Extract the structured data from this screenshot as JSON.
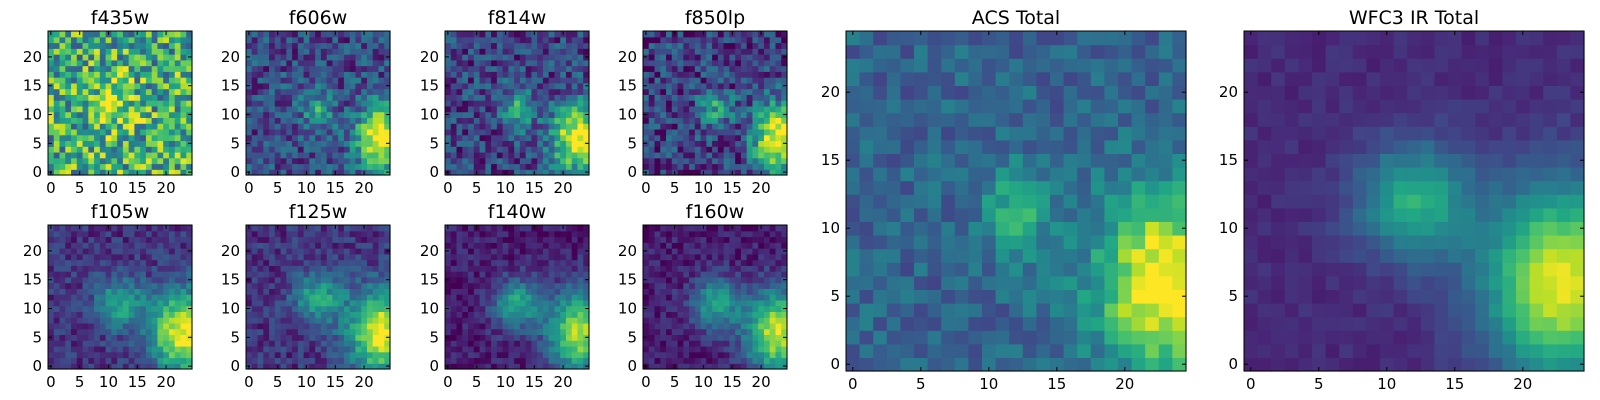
{
  "chart_data": [
    {
      "type": "heatmap",
      "title": "f435w",
      "xticks": [
        "0",
        "5",
        "10",
        "15",
        "20"
      ],
      "yticks": [
        "0",
        "5",
        "10",
        "15",
        "20"
      ],
      "xlim": [
        0,
        24
      ],
      "ylim": [
        0,
        24
      ],
      "grid": false,
      "sources": [
        {
          "x": 11,
          "y": 12,
          "amp": 0.3,
          "sx": 2.5,
          "sy": 3.0
        }
      ],
      "baseline": 0.62,
      "noise": 0.35
    },
    {
      "type": "heatmap",
      "title": "f606w",
      "xticks": [
        "0",
        "5",
        "10",
        "15",
        "20"
      ],
      "yticks": [
        "0",
        "5",
        "10",
        "15",
        "20"
      ],
      "xlim": [
        0,
        24
      ],
      "ylim": [
        0,
        24
      ],
      "grid": false,
      "sources": [
        {
          "x": 12,
          "y": 11,
          "amp": 0.35,
          "sx": 2.0,
          "sy": 2.5
        },
        {
          "x": 23,
          "y": 6,
          "amp": 0.85,
          "sx": 3.0,
          "sy": 4.0
        }
      ],
      "baseline": 0.22,
      "noise": 0.2
    },
    {
      "type": "heatmap",
      "title": "f814w",
      "xticks": [
        "0",
        "5",
        "10",
        "15",
        "20"
      ],
      "yticks": [
        "0",
        "5",
        "10",
        "15",
        "20"
      ],
      "xlim": [
        0,
        24
      ],
      "ylim": [
        0,
        24
      ],
      "grid": false,
      "sources": [
        {
          "x": 12,
          "y": 11,
          "amp": 0.4,
          "sx": 2.0,
          "sy": 2.5
        },
        {
          "x": 23,
          "y": 6,
          "amp": 0.85,
          "sx": 3.5,
          "sy": 4.0
        }
      ],
      "baseline": 0.2,
      "noise": 0.2
    },
    {
      "type": "heatmap",
      "title": "f850lp",
      "xticks": [
        "0",
        "5",
        "10",
        "15",
        "20"
      ],
      "yticks": [
        "0",
        "5",
        "10",
        "15",
        "20"
      ],
      "xlim": [
        0,
        24
      ],
      "ylim": [
        0,
        24
      ],
      "grid": false,
      "sources": [
        {
          "x": 12,
          "y": 11,
          "amp": 0.4,
          "sx": 2.0,
          "sy": 2.5
        },
        {
          "x": 23,
          "y": 6,
          "amp": 0.9,
          "sx": 3.0,
          "sy": 4.0
        }
      ],
      "baseline": 0.18,
      "noise": 0.22
    },
    {
      "type": "heatmap",
      "title": "f105w",
      "xticks": [
        "0",
        "5",
        "10",
        "15",
        "20"
      ],
      "yticks": [
        "0",
        "5",
        "10",
        "15",
        "20"
      ],
      "xlim": [
        0,
        24
      ],
      "ylim": [
        0,
        24
      ],
      "grid": false,
      "sources": [
        {
          "x": 12,
          "y": 11,
          "amp": 0.45,
          "sx": 3.0,
          "sy": 3.0
        },
        {
          "x": 23,
          "y": 6,
          "amp": 0.85,
          "sx": 4.0,
          "sy": 5.0
        }
      ],
      "baseline": 0.15,
      "noise": 0.12
    },
    {
      "type": "heatmap",
      "title": "f125w",
      "xticks": [
        "0",
        "5",
        "10",
        "15",
        "20"
      ],
      "yticks": [
        "0",
        "5",
        "10",
        "15",
        "20"
      ],
      "xlim": [
        0,
        24
      ],
      "ylim": [
        0,
        24
      ],
      "grid": false,
      "sources": [
        {
          "x": 12,
          "y": 12,
          "amp": 0.45,
          "sx": 3.0,
          "sy": 3.0
        },
        {
          "x": 23,
          "y": 6,
          "amp": 0.85,
          "sx": 4.0,
          "sy": 5.0
        }
      ],
      "baseline": 0.15,
      "noise": 0.12
    },
    {
      "type": "heatmap",
      "title": "f140w",
      "xticks": [
        "0",
        "5",
        "10",
        "15",
        "20"
      ],
      "yticks": [
        "0",
        "5",
        "10",
        "15",
        "20"
      ],
      "xlim": [
        0,
        24
      ],
      "ylim": [
        0,
        24
      ],
      "grid": false,
      "sources": [
        {
          "x": 12,
          "y": 11,
          "amp": 0.5,
          "sx": 3.0,
          "sy": 3.0
        },
        {
          "x": 23,
          "y": 6,
          "amp": 0.8,
          "sx": 4.0,
          "sy": 5.0
        }
      ],
      "baseline": 0.08,
      "noise": 0.1
    },
    {
      "type": "heatmap",
      "title": "f160w",
      "xticks": [
        "0",
        "5",
        "10",
        "15",
        "20"
      ],
      "yticks": [
        "0",
        "5",
        "10",
        "15",
        "20"
      ],
      "xlim": [
        0,
        24
      ],
      "ylim": [
        0,
        24
      ],
      "grid": false,
      "sources": [
        {
          "x": 12,
          "y": 11,
          "amp": 0.5,
          "sx": 3.0,
          "sy": 3.0
        },
        {
          "x": 23,
          "y": 6,
          "amp": 0.85,
          "sx": 4.0,
          "sy": 5.0
        }
      ],
      "baseline": 0.08,
      "noise": 0.1
    },
    {
      "type": "heatmap",
      "title": "ACS Total",
      "xticks": [
        "0",
        "5",
        "10",
        "15",
        "20"
      ],
      "yticks": [
        "0",
        "5",
        "10",
        "15",
        "20"
      ],
      "xlim": [
        0,
        24
      ],
      "ylim": [
        0,
        24
      ],
      "grid": false,
      "sources": [
        {
          "x": 12,
          "y": 11,
          "amp": 0.35,
          "sx": 1.5,
          "sy": 2.5
        },
        {
          "x": 23,
          "y": 6,
          "amp": 0.75,
          "sx": 3.5,
          "sy": 4.5
        }
      ],
      "baseline": 0.32,
      "noise": 0.12
    },
    {
      "type": "heatmap",
      "title": "WFC3 IR Total",
      "xticks": [
        "0",
        "5",
        "10",
        "15",
        "20"
      ],
      "yticks": [
        "0",
        "5",
        "10",
        "15",
        "20"
      ],
      "xlim": [
        0,
        24
      ],
      "ylim": [
        0,
        24
      ],
      "grid": false,
      "sources": [
        {
          "x": 12,
          "y": 12,
          "amp": 0.5,
          "sx": 3.0,
          "sy": 3.0
        },
        {
          "x": 23,
          "y": 6,
          "amp": 0.85,
          "sx": 4.0,
          "sy": 5.0
        }
      ],
      "baseline": 0.12,
      "noise": 0.04
    }
  ],
  "colormap": "viridis"
}
